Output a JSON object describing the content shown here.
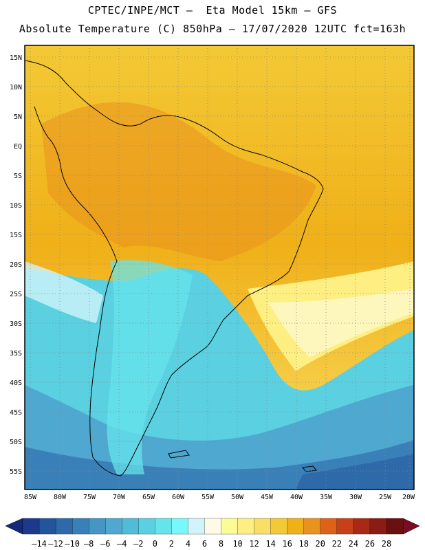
{
  "title_line1": "CPTEC/INPE/MCT –  Eta Model 15km – GFS",
  "title_line2": "Absolute Temperature (C) 850hPa – 17/07/2020 12UTC fct=163h",
  "lat_labels": [
    "15N",
    "10N",
    "5N",
    "EQ",
    "5S",
    "10S",
    "15S",
    "20S",
    "25S",
    "30S",
    "35S",
    "40S",
    "45S",
    "50S",
    "55S"
  ],
  "lon_labels": [
    "85W",
    "80W",
    "75W",
    "70W",
    "65W",
    "60W",
    "55W",
    "50W",
    "45W",
    "40W",
    "35W",
    "30W",
    "25W",
    "20W"
  ],
  "colorbar": {
    "labels": [
      "–14",
      "–12",
      "–10",
      "–8",
      "–6",
      "–4",
      "–2",
      "0",
      "2",
      "4",
      "6",
      "8",
      "10",
      "12",
      "14",
      "16",
      "18",
      "20",
      "22",
      "24",
      "26",
      "28"
    ],
    "colors": [
      "#1c3a8c",
      "#24549c",
      "#2e6aaa",
      "#3a80b8",
      "#4596c4",
      "#4fa8d0",
      "#52bcd8",
      "#5ad0e0",
      "#66e4ec",
      "#78f8f8",
      "#d0f4fa",
      "#fdfbe6",
      "#fdfb96",
      "#fdef82",
      "#f9df66",
      "#f3c936",
      "#f0b018",
      "#e9921e",
      "#dc621a",
      "#c8401a",
      "#a82a16",
      "#8a1c14",
      "#6a1010"
    ],
    "low_color": "#142a78",
    "high_color": "#7a0c24"
  }
}
